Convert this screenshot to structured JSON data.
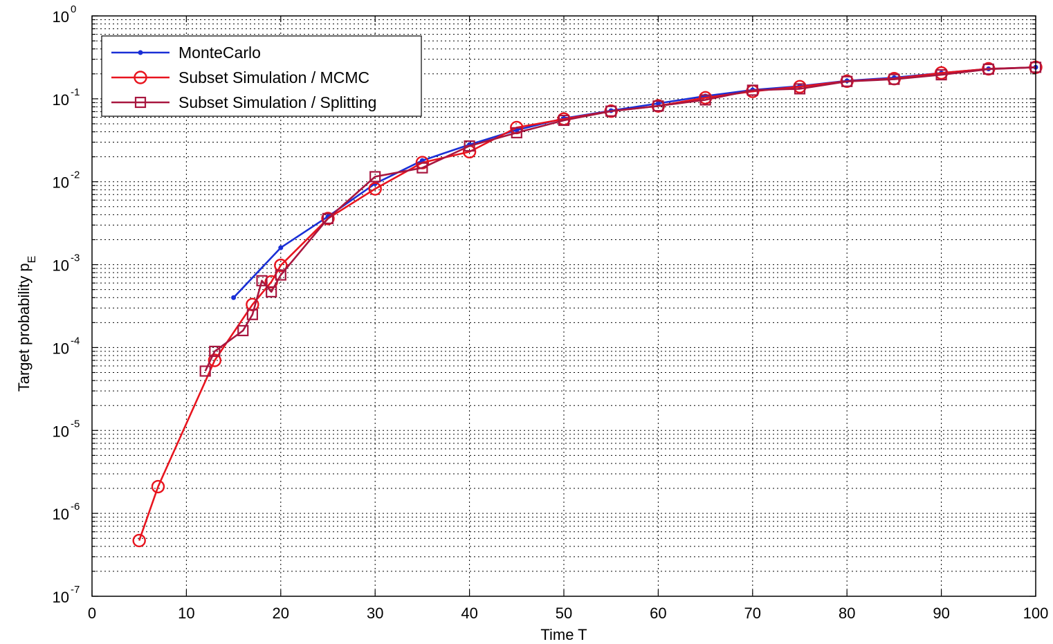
{
  "chart_data": {
    "type": "line",
    "title": "",
    "xlabel": "Time T",
    "ylabel_main": "Target probability p",
    "ylabel_sub": "E",
    "xlim": [
      0,
      100
    ],
    "ylim": [
      1e-07,
      1
    ],
    "yscale": "log",
    "xticks": [
      0,
      10,
      20,
      30,
      40,
      50,
      60,
      70,
      80,
      90,
      100
    ],
    "yticks": [
      {
        "value": 1e-07,
        "base": "10",
        "exp": "-7"
      },
      {
        "value": 1e-06,
        "base": "10",
        "exp": "-6"
      },
      {
        "value": 1e-05,
        "base": "10",
        "exp": "-5"
      },
      {
        "value": 0.0001,
        "base": "10",
        "exp": "-4"
      },
      {
        "value": 0.001,
        "base": "10",
        "exp": "-3"
      },
      {
        "value": 0.01,
        "base": "10",
        "exp": "-2"
      },
      {
        "value": 0.1,
        "base": "10",
        "exp": "-1"
      },
      {
        "value": 1,
        "base": "10",
        "exp": "0"
      }
    ],
    "grid": true,
    "legend_position": "top-left",
    "series": [
      {
        "name": "MonteCarlo",
        "color": "#1a2fd6",
        "marker": "dot",
        "x": [
          15,
          20,
          25,
          30,
          35,
          40,
          45,
          50,
          55,
          60,
          65,
          70,
          75,
          80,
          85,
          90,
          95,
          100
        ],
        "y": [
          0.0004,
          0.0016,
          0.0038,
          0.0095,
          0.018,
          0.028,
          0.042,
          0.058,
          0.072,
          0.088,
          0.108,
          0.128,
          0.142,
          0.165,
          0.18,
          0.205,
          0.23,
          0.24
        ]
      },
      {
        "name": "Subset Simulation / MCMC",
        "color": "#e8141e",
        "marker": "circle",
        "x": [
          5,
          7,
          13,
          17,
          19,
          20,
          25,
          30,
          35,
          40,
          45,
          50,
          55,
          60,
          65,
          70,
          75,
          80,
          85,
          90,
          95,
          100
        ],
        "y": [
          4.7e-07,
          2.1e-06,
          7e-05,
          0.00033,
          0.00062,
          0.00098,
          0.0036,
          0.0082,
          0.017,
          0.023,
          0.045,
          0.057,
          0.071,
          0.082,
          0.103,
          0.123,
          0.14,
          0.163,
          0.175,
          0.205,
          0.23,
          0.24
        ]
      },
      {
        "name": "Subset Simulation / Splitting",
        "color": "#a8163f",
        "marker": "square",
        "x": [
          12,
          13,
          16,
          17,
          18,
          19,
          20,
          25,
          30,
          35,
          40,
          45,
          50,
          55,
          60,
          65,
          70,
          75,
          80,
          85,
          90,
          95,
          100
        ],
        "y": [
          5.2e-05,
          9e-05,
          0.00016,
          0.00025,
          0.00064,
          0.00047,
          0.00075,
          0.0036,
          0.0115,
          0.0147,
          0.027,
          0.039,
          0.055,
          0.071,
          0.082,
          0.097,
          0.127,
          0.132,
          0.162,
          0.172,
          0.195,
          0.228,
          0.24
        ]
      }
    ]
  }
}
